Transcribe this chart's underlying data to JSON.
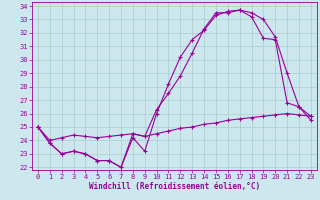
{
  "xlabel": "Windchill (Refroidissement éolien,°C)",
  "bg_color": "#cce8ee",
  "line_color": "#990099",
  "grid_color": "#aacccc",
  "xlim": [
    -0.5,
    23.5
  ],
  "ylim": [
    21.8,
    34.3
  ],
  "xticks": [
    0,
    1,
    2,
    3,
    4,
    5,
    6,
    7,
    8,
    9,
    10,
    11,
    12,
    13,
    14,
    15,
    16,
    17,
    18,
    19,
    20,
    21,
    22,
    23
  ],
  "yticks": [
    22,
    23,
    24,
    25,
    26,
    27,
    28,
    29,
    30,
    31,
    32,
    33,
    34
  ],
  "line1_x": [
    0,
    1,
    2,
    3,
    4,
    5,
    6,
    7,
    8,
    9,
    10,
    11,
    12,
    13,
    14,
    15,
    16,
    17,
    18,
    19,
    20,
    21,
    22,
    23
  ],
  "line1_y": [
    25.0,
    23.8,
    23.0,
    23.2,
    23.0,
    22.5,
    22.5,
    22.0,
    24.2,
    23.2,
    26.0,
    28.2,
    30.2,
    31.5,
    32.2,
    33.3,
    33.6,
    33.7,
    33.5,
    33.0,
    31.7,
    29.0,
    26.5,
    25.8
  ],
  "line2_x": [
    0,
    1,
    2,
    3,
    4,
    5,
    6,
    7,
    8,
    9,
    10,
    11,
    12,
    13,
    14,
    15,
    16,
    17,
    18,
    19,
    20,
    21,
    22,
    23
  ],
  "line2_y": [
    25.0,
    23.8,
    23.0,
    23.2,
    23.0,
    22.5,
    22.5,
    22.0,
    24.5,
    24.3,
    26.3,
    27.5,
    28.8,
    30.5,
    32.3,
    33.5,
    33.5,
    33.7,
    33.2,
    31.6,
    31.5,
    26.8,
    26.5,
    25.5
  ],
  "line3_x": [
    0,
    1,
    2,
    3,
    4,
    5,
    6,
    7,
    8,
    9,
    10,
    11,
    12,
    13,
    14,
    15,
    16,
    17,
    18,
    19,
    20,
    21,
    22,
    23
  ],
  "line3_y": [
    25.0,
    24.0,
    24.2,
    24.4,
    24.3,
    24.2,
    24.3,
    24.4,
    24.5,
    24.3,
    24.5,
    24.7,
    24.9,
    25.0,
    25.2,
    25.3,
    25.5,
    25.6,
    25.7,
    25.8,
    25.9,
    26.0,
    25.9,
    25.8
  ]
}
